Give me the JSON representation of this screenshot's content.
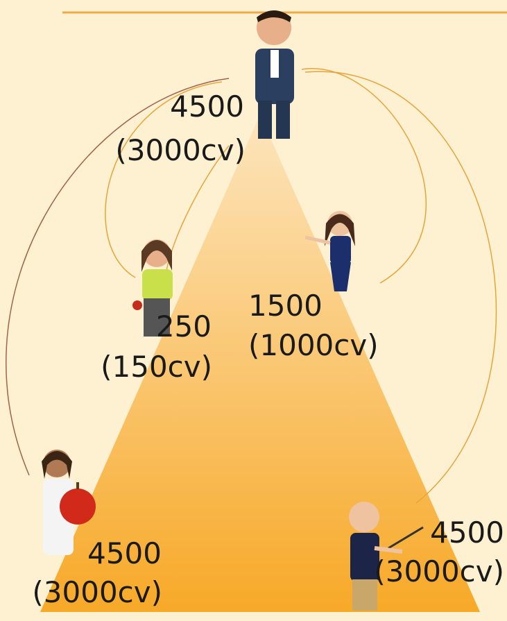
{
  "nodes": [
    {
      "value": "4500",
      "sub": "(3000cv)"
    },
    {
      "value": "250",
      "sub": "(150cv)"
    },
    {
      "value": "1500",
      "sub": "(1000cv)"
    },
    {
      "value": "4500",
      "sub": "(3000cv)"
    },
    {
      "value": "4500",
      "sub": "(3000cv)"
    }
  ]
}
